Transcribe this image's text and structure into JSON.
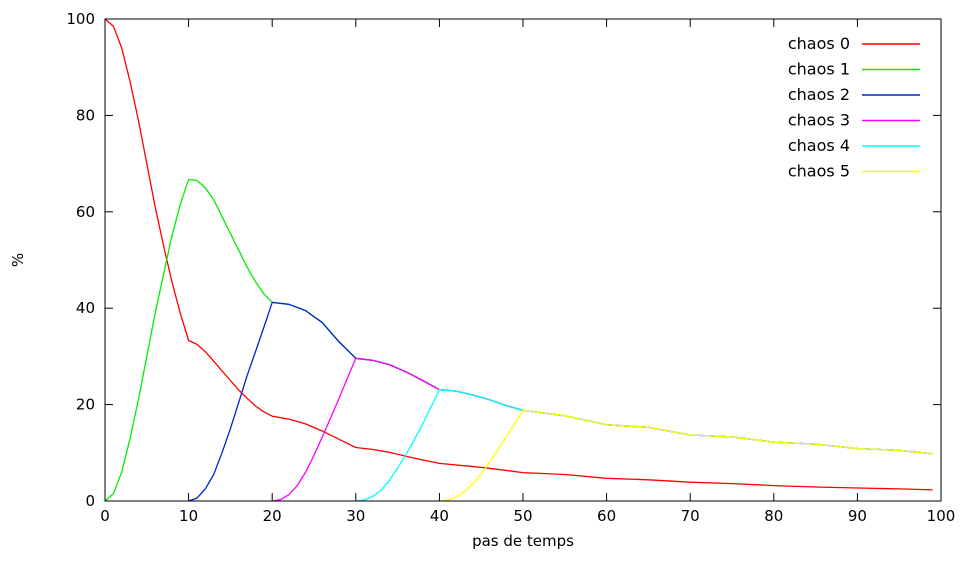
{
  "chart_data": {
    "type": "line",
    "title": "",
    "xlabel": "pas de temps",
    "ylabel": "%",
    "xlim": [
      0,
      100
    ],
    "ylim": [
      0,
      100
    ],
    "xticks": [
      0,
      10,
      20,
      30,
      40,
      50,
      60,
      70,
      80,
      90,
      100
    ],
    "yticks": [
      0,
      20,
      40,
      60,
      80,
      100
    ],
    "grid": false,
    "legend_position": "top-right",
    "series": [
      {
        "name": "chaos 0",
        "color": "#ff0000",
        "points": [
          [
            0,
            100
          ],
          [
            1,
            98.5
          ],
          [
            2,
            94
          ],
          [
            3,
            87
          ],
          [
            4,
            79
          ],
          [
            5,
            70
          ],
          [
            6,
            61
          ],
          [
            7,
            53
          ],
          [
            8,
            45.5
          ],
          [
            9,
            39
          ],
          [
            10,
            33.3
          ],
          [
            11,
            32.5
          ],
          [
            12,
            31
          ],
          [
            13,
            29
          ],
          [
            14,
            27
          ],
          [
            15,
            25
          ],
          [
            16,
            23
          ],
          [
            17,
            21.3
          ],
          [
            18,
            19.7
          ],
          [
            19,
            18.5
          ],
          [
            20,
            17.6
          ],
          [
            22,
            17
          ],
          [
            24,
            16
          ],
          [
            26,
            14.5
          ],
          [
            28,
            12.8
          ],
          [
            30,
            11.1
          ],
          [
            32,
            10.7
          ],
          [
            34,
            10.1
          ],
          [
            36,
            9.3
          ],
          [
            38,
            8.5
          ],
          [
            40,
            7.8
          ],
          [
            45,
            7
          ],
          [
            50,
            5.9
          ],
          [
            55,
            5.5
          ],
          [
            60,
            4.7
          ],
          [
            65,
            4.4
          ],
          [
            70,
            3.9
          ],
          [
            75,
            3.6
          ],
          [
            80,
            3.2
          ],
          [
            85,
            2.9
          ],
          [
            90,
            2.7
          ],
          [
            95,
            2.5
          ],
          [
            99,
            2.3
          ]
        ]
      },
      {
        "name": "chaos 1",
        "color": "#00ee00",
        "points": [
          [
            0,
            0
          ],
          [
            1,
            1.5
          ],
          [
            2,
            6
          ],
          [
            3,
            13
          ],
          [
            4,
            21
          ],
          [
            5,
            30
          ],
          [
            6,
            39
          ],
          [
            7,
            47
          ],
          [
            8,
            55
          ],
          [
            9,
            61.5
          ],
          [
            10,
            66.7
          ],
          [
            11,
            66.5
          ],
          [
            12,
            65
          ],
          [
            13,
            62.5
          ],
          [
            14,
            59
          ],
          [
            15,
            55.5
          ],
          [
            16,
            52
          ],
          [
            17,
            48.5
          ],
          [
            18,
            45.5
          ],
          [
            19,
            43
          ],
          [
            20,
            41.2
          ],
          [
            22,
            40.8
          ],
          [
            24,
            39.5
          ],
          [
            26,
            37
          ],
          [
            28,
            33
          ],
          [
            30,
            29.6
          ],
          [
            32,
            29.2
          ],
          [
            34,
            28.3
          ],
          [
            36,
            26.8
          ],
          [
            38,
            25
          ],
          [
            40,
            23.1
          ],
          [
            42,
            22.8
          ],
          [
            44,
            22
          ],
          [
            46,
            21
          ],
          [
            48,
            19.8
          ],
          [
            50,
            18.8
          ],
          [
            55,
            17.7
          ],
          [
            60,
            15.8
          ],
          [
            65,
            15.3
          ],
          [
            70,
            13.7
          ],
          [
            75,
            13.3
          ],
          [
            80,
            12.2
          ],
          [
            85,
            11.8
          ],
          [
            90,
            10.9
          ],
          [
            95,
            10.5
          ],
          [
            99,
            9.8
          ]
        ]
      },
      {
        "name": "chaos 2",
        "color": "#0022cc",
        "points": [
          [
            10,
            0
          ],
          [
            11,
            0.6
          ],
          [
            12,
            2.5
          ],
          [
            13,
            5.5
          ],
          [
            14,
            10
          ],
          [
            15,
            15
          ],
          [
            16,
            20.5
          ],
          [
            17,
            26
          ],
          [
            18,
            31
          ],
          [
            19,
            36
          ],
          [
            20,
            41.2
          ],
          [
            22,
            40.8
          ],
          [
            24,
            39.5
          ],
          [
            26,
            37
          ],
          [
            28,
            33
          ],
          [
            30,
            29.6
          ],
          [
            32,
            29.2
          ],
          [
            34,
            28.3
          ],
          [
            36,
            26.8
          ],
          [
            38,
            25
          ],
          [
            40,
            23.1
          ],
          [
            42,
            22.8
          ],
          [
            44,
            22
          ],
          [
            46,
            21
          ],
          [
            48,
            19.8
          ],
          [
            50,
            18.8
          ],
          [
            55,
            17.7
          ],
          [
            60,
            15.8
          ],
          [
            65,
            15.3
          ],
          [
            70,
            13.7
          ],
          [
            75,
            13.3
          ],
          [
            80,
            12.2
          ],
          [
            85,
            11.8
          ],
          [
            90,
            10.9
          ],
          [
            95,
            10.5
          ],
          [
            99,
            9.8
          ]
        ]
      },
      {
        "name": "chaos 3",
        "color": "#ff00ff",
        "points": [
          [
            20,
            0
          ],
          [
            21,
            0.3
          ],
          [
            22,
            1.3
          ],
          [
            23,
            3.2
          ],
          [
            24,
            6
          ],
          [
            25,
            9.5
          ],
          [
            26,
            13.3
          ],
          [
            27,
            17.3
          ],
          [
            28,
            21.3
          ],
          [
            29,
            25.5
          ],
          [
            30,
            29.6
          ],
          [
            32,
            29.2
          ],
          [
            34,
            28.3
          ],
          [
            36,
            26.8
          ],
          [
            38,
            25
          ],
          [
            40,
            23.1
          ],
          [
            42,
            22.8
          ],
          [
            44,
            22
          ],
          [
            46,
            21
          ],
          [
            48,
            19.8
          ],
          [
            50,
            18.8
          ],
          [
            55,
            17.7
          ],
          [
            60,
            15.8
          ],
          [
            65,
            15.3
          ],
          [
            70,
            13.7
          ],
          [
            75,
            13.3
          ],
          [
            80,
            12.2
          ],
          [
            85,
            11.8
          ],
          [
            90,
            10.9
          ],
          [
            95,
            10.5
          ],
          [
            99,
            9.8
          ]
        ]
      },
      {
        "name": "chaos 4",
        "color": "#00ffff",
        "points": [
          [
            30,
            0
          ],
          [
            31,
            0.2
          ],
          [
            32,
            0.9
          ],
          [
            33,
            2.2
          ],
          [
            34,
            4.2
          ],
          [
            35,
            6.8
          ],
          [
            36,
            9.6
          ],
          [
            37,
            12.7
          ],
          [
            38,
            16
          ],
          [
            39,
            19.5
          ],
          [
            40,
            23.1
          ],
          [
            42,
            22.8
          ],
          [
            44,
            22
          ],
          [
            46,
            21
          ],
          [
            48,
            19.8
          ],
          [
            50,
            18.8
          ],
          [
            55,
            17.7
          ],
          [
            60,
            15.8
          ],
          [
            65,
            15.3
          ],
          [
            70,
            13.7
          ],
          [
            75,
            13.3
          ],
          [
            80,
            12.2
          ],
          [
            85,
            11.8
          ],
          [
            90,
            10.9
          ],
          [
            95,
            10.5
          ],
          [
            99,
            9.8
          ]
        ]
      },
      {
        "name": "chaos 5",
        "color": "#ffff00",
        "points": [
          [
            40,
            0
          ],
          [
            41,
            0.2
          ],
          [
            42,
            0.8
          ],
          [
            43,
            1.9
          ],
          [
            44,
            3.5
          ],
          [
            45,
            5.6
          ],
          [
            46,
            8
          ],
          [
            47,
            10.6
          ],
          [
            48,
            13.3
          ],
          [
            49,
            16
          ],
          [
            50,
            18.8
          ],
          [
            55,
            17.7
          ],
          [
            60,
            15.8
          ],
          [
            65,
            15.3
          ],
          [
            70,
            13.7
          ],
          [
            75,
            13.3
          ],
          [
            80,
            12.2
          ],
          [
            85,
            11.8
          ],
          [
            90,
            10.9
          ],
          [
            95,
            10.5
          ],
          [
            99,
            9.8
          ]
        ]
      }
    ]
  }
}
